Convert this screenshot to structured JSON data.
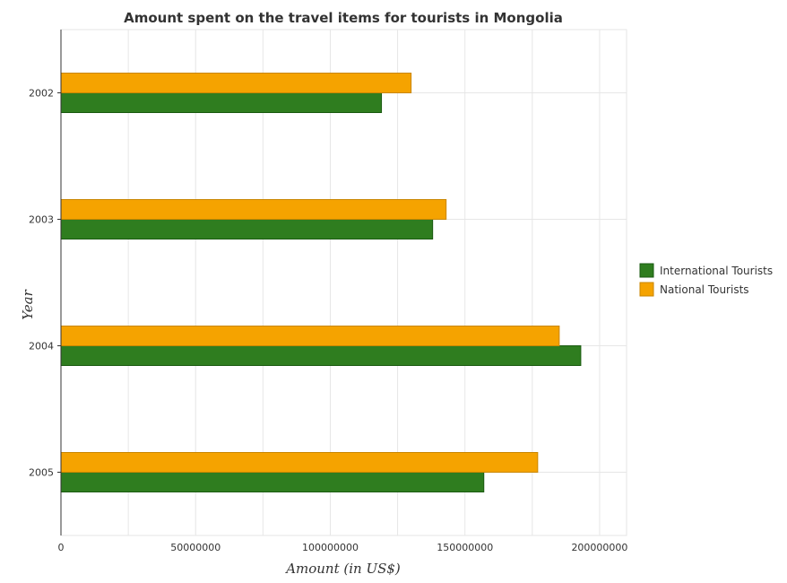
{
  "chart_data": {
    "type": "bar",
    "orientation": "horizontal",
    "title": "Amount spent on the travel items for tourists in Mongolia",
    "xlabel": "Amount (in US$)",
    "ylabel": "Year",
    "categories": [
      "2002",
      "2003",
      "2004",
      "2005"
    ],
    "series": [
      {
        "name": "International Tourists",
        "color": "#2f7d1f",
        "edge_color": "#1a5a10",
        "values": [
          119000000,
          138000000,
          193000000,
          157000000
        ]
      },
      {
        "name": "National Tourists",
        "color": "#f5a300",
        "edge_color": "#c98600",
        "values": [
          130000000,
          143000000,
          185000000,
          177000000
        ]
      }
    ],
    "xlim": [
      0,
      210000000
    ],
    "xticks": [
      0,
      50000000,
      100000000,
      150000000,
      200000000
    ],
    "xtick_labels": [
      "0",
      "50000000",
      "100000000",
      "150000000",
      "200000000"
    ],
    "grid": true,
    "legend_position": "right"
  }
}
